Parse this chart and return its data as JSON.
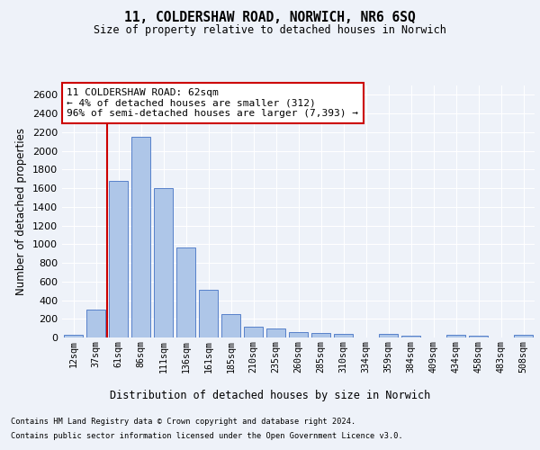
{
  "title": "11, COLDERSHAW ROAD, NORWICH, NR6 6SQ",
  "subtitle": "Size of property relative to detached houses in Norwich",
  "xlabel": "Distribution of detached houses by size in Norwich",
  "ylabel": "Number of detached properties",
  "bar_labels": [
    "12sqm",
    "37sqm",
    "61sqm",
    "86sqm",
    "111sqm",
    "136sqm",
    "161sqm",
    "185sqm",
    "210sqm",
    "235sqm",
    "260sqm",
    "285sqm",
    "310sqm",
    "334sqm",
    "359sqm",
    "384sqm",
    "409sqm",
    "434sqm",
    "458sqm",
    "483sqm",
    "508sqm"
  ],
  "bar_values": [
    25,
    300,
    1680,
    2150,
    1600,
    960,
    510,
    250,
    120,
    100,
    55,
    50,
    40,
    0,
    35,
    20,
    0,
    25,
    20,
    0,
    25
  ],
  "bar_color": "#aec6e8",
  "bar_edge_color": "#4472c4",
  "vline_color": "#cc0000",
  "vline_pos": 1.5,
  "ylim": [
    0,
    2700
  ],
  "yticks": [
    0,
    200,
    400,
    600,
    800,
    1000,
    1200,
    1400,
    1600,
    1800,
    2000,
    2200,
    2400,
    2600
  ],
  "annotation_text": "11 COLDERSHAW ROAD: 62sqm\n← 4% of detached houses are smaller (312)\n96% of semi-detached houses are larger (7,393) →",
  "annotation_box_color": "#ffffff",
  "annotation_box_edge": "#cc0000",
  "footnote1": "Contains HM Land Registry data © Crown copyright and database right 2024.",
  "footnote2": "Contains public sector information licensed under the Open Government Licence v3.0.",
  "bg_color": "#eef2f9",
  "plot_bg_color": "#eef2f9",
  "grid_color": "#ffffff"
}
